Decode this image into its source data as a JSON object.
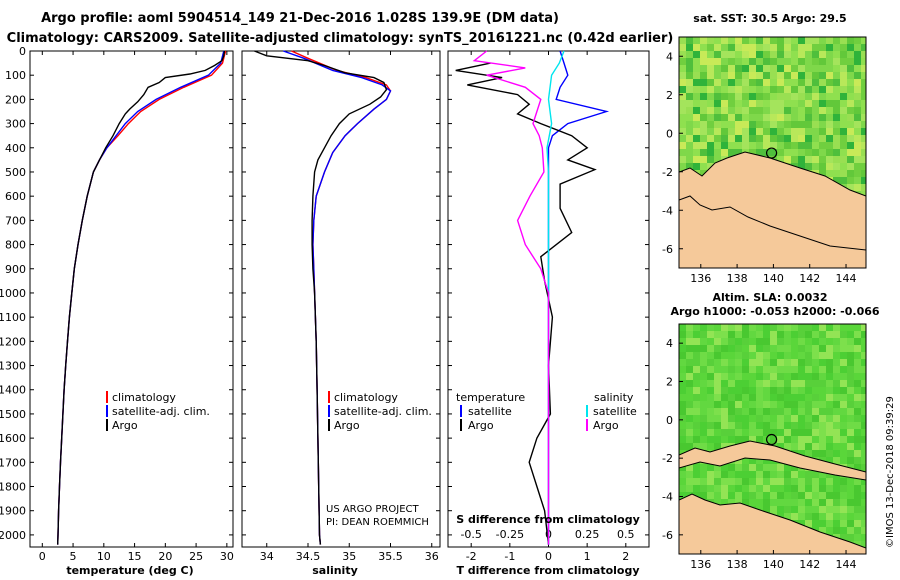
{
  "header": {
    "line1": "Argo profile: aoml 5904514_149 21-Dec-2016 1.028S 139.9E (DM data)",
    "line2": "Climatology: CARS2009. Satellite-adjusted climatology: synTS_20161221.nc (0.42d earlier)"
  },
  "colors": {
    "clim": "#ff0000",
    "sat": "#0000ff",
    "argo": "#000000",
    "sal_sat": "#00e5ee",
    "sal_argo": "#ff00ff",
    "land": "#f5c99a"
  },
  "chart_data": [
    {
      "type": "line",
      "name": "temperature",
      "xlabel": "temperature (deg C)",
      "ylim": [
        0,
        2050
      ],
      "xlim": [
        -2,
        31
      ],
      "xticks": [
        0,
        5,
        10,
        15,
        20,
        25,
        30
      ],
      "yticks": [
        0,
        100,
        200,
        300,
        400,
        500,
        600,
        700,
        800,
        900,
        1000,
        1100,
        1200,
        1300,
        1400,
        1500,
        1600,
        1700,
        1800,
        1900,
        2000
      ],
      "legend": [
        "climatology",
        "satellite-adj. clim.",
        "Argo"
      ],
      "series": [
        {
          "name": "climatology",
          "points": [
            [
              29.8,
              0
            ],
            [
              29.3,
              50
            ],
            [
              27.5,
              100
            ],
            [
              23,
              150
            ],
            [
              19,
              200
            ],
            [
              16,
              250
            ],
            [
              14,
              300
            ],
            [
              12.3,
              350
            ],
            [
              10.5,
              400
            ],
            [
              9.3,
              450
            ],
            [
              8.3,
              500
            ],
            [
              7.3,
              600
            ],
            [
              6.5,
              700
            ],
            [
              5.8,
              800
            ],
            [
              5.2,
              900
            ],
            [
              4.8,
              1000
            ],
            [
              4.4,
              1100
            ],
            [
              4.1,
              1200
            ],
            [
              3.8,
              1300
            ],
            [
              3.55,
              1400
            ],
            [
              3.35,
              1500
            ],
            [
              3.15,
              1600
            ],
            [
              2.95,
              1700
            ],
            [
              2.8,
              1800
            ],
            [
              2.65,
              1900
            ],
            [
              2.55,
              2000
            ],
            [
              2.5,
              2040
            ]
          ]
        },
        {
          "name": "satellite-adj. clim.",
          "points": [
            [
              29.5,
              0
            ],
            [
              29,
              50
            ],
            [
              27,
              100
            ],
            [
              22.5,
              150
            ],
            [
              18.5,
              200
            ],
            [
              15.5,
              250
            ],
            [
              13.5,
              300
            ],
            [
              12,
              350
            ],
            [
              10.5,
              400
            ],
            [
              9.3,
              450
            ],
            [
              8.3,
              500
            ],
            [
              7.3,
              600
            ],
            [
              6.5,
              700
            ],
            [
              5.8,
              800
            ],
            [
              5.2,
              900
            ],
            [
              4.8,
              1000
            ],
            [
              4.4,
              1100
            ],
            [
              4.1,
              1200
            ],
            [
              3.8,
              1300
            ],
            [
              3.55,
              1400
            ],
            [
              3.35,
              1500
            ],
            [
              3.15,
              1600
            ],
            [
              2.95,
              1700
            ],
            [
              2.8,
              1800
            ],
            [
              2.65,
              1900
            ],
            [
              2.55,
              2000
            ],
            [
              2.5,
              2040
            ]
          ]
        },
        {
          "name": "Argo",
          "points": [
            [
              29.6,
              0
            ],
            [
              29.5,
              20
            ],
            [
              29.2,
              40
            ],
            [
              28,
              60
            ],
            [
              26.5,
              80
            ],
            [
              24,
              95
            ],
            [
              20,
              110
            ],
            [
              19,
              130
            ],
            [
              17.2,
              150
            ],
            [
              16.5,
              180
            ],
            [
              15.5,
              210
            ],
            [
              14.2,
              240
            ],
            [
              13.5,
              260
            ],
            [
              12.5,
              300
            ],
            [
              11.5,
              350
            ],
            [
              10.3,
              400
            ],
            [
              9.3,
              450
            ],
            [
              8.3,
              500
            ],
            [
              7.3,
              600
            ],
            [
              6.5,
              700
            ],
            [
              5.8,
              800
            ],
            [
              5.2,
              900
            ],
            [
              4.8,
              1000
            ],
            [
              4.4,
              1100
            ],
            [
              4.1,
              1200
            ],
            [
              3.8,
              1300
            ],
            [
              3.55,
              1400
            ],
            [
              3.35,
              1500
            ],
            [
              3.15,
              1600
            ],
            [
              2.95,
              1700
            ],
            [
              2.8,
              1800
            ],
            [
              2.65,
              1900
            ],
            [
              2.55,
              2000
            ],
            [
              2.5,
              2040
            ]
          ]
        }
      ]
    },
    {
      "type": "line",
      "name": "salinity",
      "xlabel": "salinity",
      "ylim": [
        0,
        2050
      ],
      "xlim": [
        33.7,
        36.1
      ],
      "xticks": [
        34,
        34.5,
        35,
        35.5,
        36
      ],
      "xticklabels": [
        "34",
        "34.5",
        "35",
        "35.5",
        "36"
      ],
      "legend": [
        "climatology",
        "satellite-adj. clim.",
        "Argo"
      ],
      "annotation": [
        "US ARGO PROJECT",
        "PI: DEAN ROEMMICH"
      ],
      "series": [
        {
          "name": "climatology",
          "points": [
            [
              34.3,
              0
            ],
            [
              34.5,
              30
            ],
            [
              34.85,
              80
            ],
            [
              35.2,
              110
            ],
            [
              35.45,
              140
            ],
            [
              35.5,
              165
            ],
            [
              35.45,
              200
            ],
            [
              35.3,
              240
            ],
            [
              35.1,
              300
            ],
            [
              34.95,
              350
            ],
            [
              34.8,
              420
            ],
            [
              34.7,
              500
            ],
            [
              34.6,
              600
            ],
            [
              34.57,
              700
            ],
            [
              34.56,
              800
            ],
            [
              34.57,
              900
            ],
            [
              34.58,
              1000
            ],
            [
              34.6,
              1200
            ],
            [
              34.61,
              1400
            ],
            [
              34.62,
              1600
            ],
            [
              34.63,
              1800
            ],
            [
              34.64,
              2000
            ],
            [
              34.65,
              2040
            ]
          ]
        },
        {
          "name": "satellite-adj. clim.",
          "points": [
            [
              34.2,
              0
            ],
            [
              34.45,
              30
            ],
            [
              34.8,
              80
            ],
            [
              35.15,
              110
            ],
            [
              35.4,
              140
            ],
            [
              35.5,
              165
            ],
            [
              35.45,
              200
            ],
            [
              35.3,
              240
            ],
            [
              35.1,
              300
            ],
            [
              34.95,
              350
            ],
            [
              34.8,
              420
            ],
            [
              34.7,
              500
            ],
            [
              34.6,
              600
            ],
            [
              34.57,
              700
            ],
            [
              34.56,
              800
            ],
            [
              34.57,
              900
            ],
            [
              34.58,
              1000
            ],
            [
              34.6,
              1200
            ],
            [
              34.61,
              1400
            ],
            [
              34.62,
              1600
            ],
            [
              34.63,
              1800
            ],
            [
              34.64,
              2000
            ],
            [
              34.65,
              2040
            ]
          ]
        },
        {
          "name": "Argo",
          "points": [
            [
              33.85,
              0
            ],
            [
              34,
              20
            ],
            [
              34.5,
              40
            ],
            [
              34.7,
              60
            ],
            [
              34.95,
              90
            ],
            [
              35.3,
              110
            ],
            [
              35.42,
              130
            ],
            [
              35.45,
              160
            ],
            [
              35.38,
              190
            ],
            [
              35.25,
              220
            ],
            [
              35,
              260
            ],
            [
              34.88,
              300
            ],
            [
              34.78,
              350
            ],
            [
              34.7,
              400
            ],
            [
              34.62,
              450
            ],
            [
              34.58,
              500
            ],
            [
              34.56,
              600
            ],
            [
              34.55,
              700
            ],
            [
              34.55,
              800
            ],
            [
              34.56,
              900
            ],
            [
              34.58,
              1000
            ],
            [
              34.6,
              1200
            ],
            [
              34.61,
              1400
            ],
            [
              34.62,
              1600
            ],
            [
              34.63,
              1800
            ],
            [
              34.64,
              2000
            ],
            [
              34.65,
              2040
            ]
          ]
        }
      ]
    },
    {
      "type": "line",
      "name": "difference",
      "xlabel": "T difference from climatology",
      "xlabel_top": "S difference from climatology",
      "ylim": [
        0,
        2050
      ],
      "xlim": [
        -2.6,
        2.6
      ],
      "xticks": [
        -2,
        -1,
        0,
        1,
        2
      ],
      "xticks_top": [
        -0.5,
        -0.25,
        0,
        0.25,
        0.5
      ],
      "xticklabels_top": [
        "-0.5",
        "-0.25",
        "0",
        "0.25",
        "0.5"
      ],
      "legend_left_title": "temperature",
      "legend_right_title": "salinity",
      "legend_left": [
        "satellite",
        "Argo"
      ],
      "legend_right": [
        "satellite",
        "Argo"
      ],
      "series": [
        {
          "name": "T satellite",
          "points": [
            [
              0.3,
              0
            ],
            [
              0.4,
              50
            ],
            [
              0.5,
              100
            ],
            [
              0.3,
              150
            ],
            [
              0.2,
              200
            ],
            [
              1.5,
              250
            ],
            [
              0.5,
              300
            ],
            [
              0.1,
              350
            ],
            [
              0,
              400
            ],
            [
              0,
              500
            ],
            [
              0,
              700
            ],
            [
              0,
              1000
            ],
            [
              0,
              1500
            ],
            [
              0,
              2040
            ]
          ]
        },
        {
          "name": "T Argo",
          "points": [
            [
              -1.5,
              50
            ],
            [
              -2.4,
              80
            ],
            [
              -1.2,
              110
            ],
            [
              -2.1,
              140
            ],
            [
              -0.8,
              180
            ],
            [
              -0.5,
              220
            ],
            [
              -0.8,
              260
            ],
            [
              -0.2,
              300
            ],
            [
              0.6,
              350
            ],
            [
              1,
              400
            ],
            [
              0.5,
              450
            ],
            [
              1.2,
              490
            ],
            [
              0.3,
              550
            ],
            [
              0.3,
              650
            ],
            [
              0.6,
              750
            ],
            [
              -0.2,
              850
            ],
            [
              -0.1,
              950
            ],
            [
              0.1,
              1100
            ],
            [
              0,
              1300
            ],
            [
              0.05,
              1500
            ],
            [
              -0.3,
              1600
            ],
            [
              -0.5,
              1700
            ],
            [
              -0.3,
              1800
            ],
            [
              -0.1,
              1900
            ],
            [
              0,
              2040
            ]
          ]
        },
        {
          "name": "S satellite",
          "points": [
            [
              0.1,
              0
            ],
            [
              0.07,
              50
            ],
            [
              0.02,
              100
            ],
            [
              0,
              200
            ],
            [
              0.02,
              300
            ],
            [
              -0.01,
              400
            ],
            [
              0,
              500
            ],
            [
              0,
              700
            ],
            [
              0,
              1000
            ],
            [
              0,
              1500
            ],
            [
              0,
              2040
            ]
          ]
        },
        {
          "name": "S Argo",
          "points": [
            [
              -0.4,
              0
            ],
            [
              -0.48,
              40
            ],
            [
              -0.15,
              70
            ],
            [
              -0.4,
              100
            ],
            [
              -0.15,
              150
            ],
            [
              -0.05,
              200
            ],
            [
              -0.1,
              300
            ],
            [
              -0.06,
              350
            ],
            [
              -0.04,
              400
            ],
            [
              -0.03,
              500
            ],
            [
              -0.12,
              600
            ],
            [
              -0.2,
              700
            ],
            [
              -0.15,
              800
            ],
            [
              -0.05,
              900
            ],
            [
              0,
              1000
            ],
            [
              0,
              1500
            ],
            [
              0,
              2040
            ]
          ]
        }
      ]
    },
    {
      "type": "heatmap",
      "name": "sst-map",
      "title": "sat. SST: 30.5 Argo: 29.5",
      "xticks": [
        136,
        138,
        140,
        142,
        144
      ],
      "yticks": [
        4,
        2,
        0,
        -2,
        -4,
        -6
      ],
      "xlim": [
        134.8,
        145.1
      ],
      "ylim": [
        -7,
        5
      ],
      "marker": [
        139.9,
        -1.028
      ]
    },
    {
      "type": "heatmap",
      "name": "sla-map",
      "title_line1": "Altim. SLA: 0.0032",
      "title_line2": "Argo h1000: -0.053 h2000: -0.066",
      "xticks": [
        136,
        138,
        140,
        142,
        144
      ],
      "yticks": [
        4,
        2,
        0,
        -2,
        -4,
        -6
      ],
      "xlim": [
        134.8,
        145.1
      ],
      "ylim": [
        -7,
        5
      ],
      "marker": [
        139.9,
        -1.028
      ]
    }
  ],
  "credit": "©IMOS 13-Dec-2018 09:39:29"
}
